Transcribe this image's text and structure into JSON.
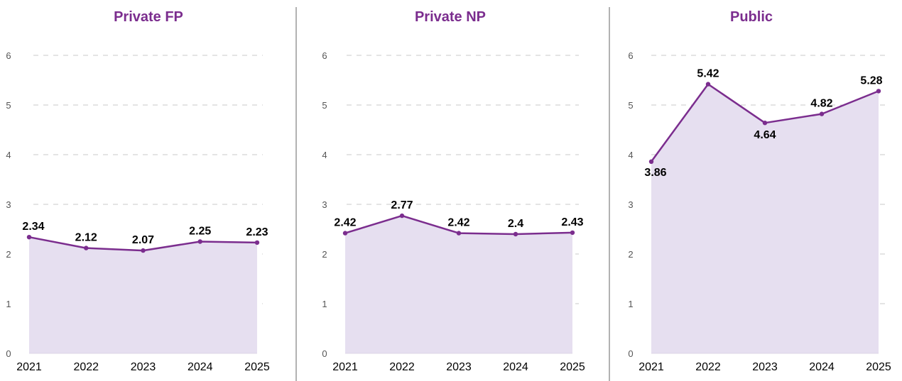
{
  "colors": {
    "line": "#7b2d8e",
    "fill": "#e6dff0",
    "grid": "#c8c8c8",
    "divider": "#999999",
    "title": "#7b2d8e"
  },
  "chart_data": [
    {
      "type": "area",
      "title": "Private FP",
      "xlabel": "",
      "ylabel": "",
      "x": [
        "2021",
        "2022",
        "2023",
        "2024",
        "2025"
      ],
      "values": [
        2.34,
        2.12,
        2.07,
        2.25,
        2.23
      ],
      "value_labels": [
        "2.34",
        "2.12",
        "2.07",
        "2.25",
        "2.23"
      ],
      "ylim": [
        0,
        6
      ],
      "yticks": [
        "0",
        "1",
        "2",
        "3",
        "4",
        "5",
        "6"
      ],
      "grid": true
    },
    {
      "type": "area",
      "title": "Private NP",
      "xlabel": "",
      "ylabel": "",
      "x": [
        "2021",
        "2022",
        "2023",
        "2024",
        "2025"
      ],
      "values": [
        2.42,
        2.77,
        2.42,
        2.4,
        2.43
      ],
      "value_labels": [
        "2.42",
        "2.77",
        "2.42",
        "2.4",
        "2.43"
      ],
      "ylim": [
        0,
        6
      ],
      "yticks": [
        "0",
        "1",
        "2",
        "3",
        "4",
        "5",
        "6"
      ],
      "grid": true
    },
    {
      "type": "area",
      "title": "Public",
      "xlabel": "",
      "ylabel": "",
      "x": [
        "2021",
        "2022",
        "2023",
        "2024",
        "2025"
      ],
      "values": [
        3.86,
        5.42,
        4.64,
        4.82,
        5.28
      ],
      "value_labels": [
        "3.86",
        "5.42",
        "4.64",
        "4.82",
        "5.28"
      ],
      "ylim": [
        0,
        6
      ],
      "yticks": [
        "0",
        "1",
        "2",
        "3",
        "4",
        "5",
        "6"
      ],
      "grid": true
    }
  ]
}
